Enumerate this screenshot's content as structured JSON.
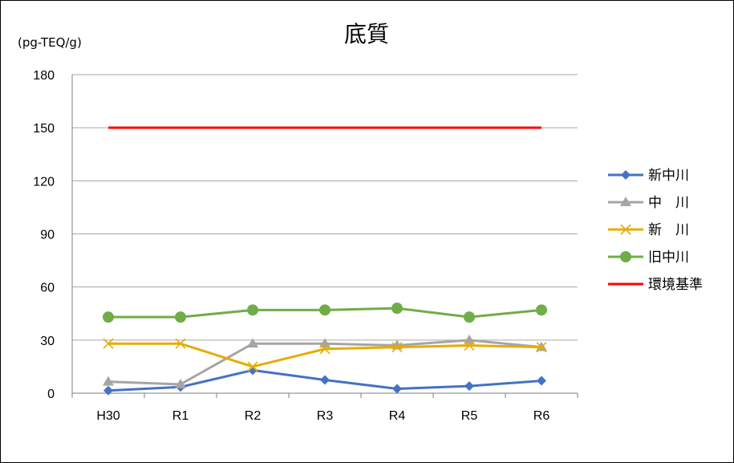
{
  "chart_data": {
    "type": "line",
    "title": "底質",
    "unit_label": "(pg-TEQ/g)",
    "categories": [
      "H30",
      "R1",
      "R2",
      "R3",
      "R4",
      "R5",
      "R6"
    ],
    "y_ticks": [
      "0",
      "30",
      "60",
      "90",
      "120",
      "150",
      "180"
    ],
    "ylim": [
      0,
      180
    ],
    "grid": true,
    "legend_position": "right",
    "series": [
      {
        "name": "新中川",
        "values": [
          1.5,
          3.5,
          13,
          7.5,
          2.5,
          4,
          7
        ],
        "color": "#4472C4",
        "marker": "diamond"
      },
      {
        "name": "中　川",
        "values": [
          6.5,
          5,
          28,
          28,
          27,
          30,
          26
        ],
        "color": "#A5A5A5",
        "marker": "triangle"
      },
      {
        "name": "新　川",
        "values": [
          28,
          28,
          15,
          25,
          26,
          27,
          26
        ],
        "color": "#E6AC00",
        "marker": "x"
      },
      {
        "name": "旧中川",
        "values": [
          43,
          43,
          47,
          47,
          48,
          43,
          47
        ],
        "color": "#70AD47",
        "marker": "circle"
      },
      {
        "name": "環境基準",
        "values": [
          150,
          150,
          150,
          150,
          150,
          150,
          150
        ],
        "color": "#FF0000",
        "marker": "none"
      }
    ]
  }
}
